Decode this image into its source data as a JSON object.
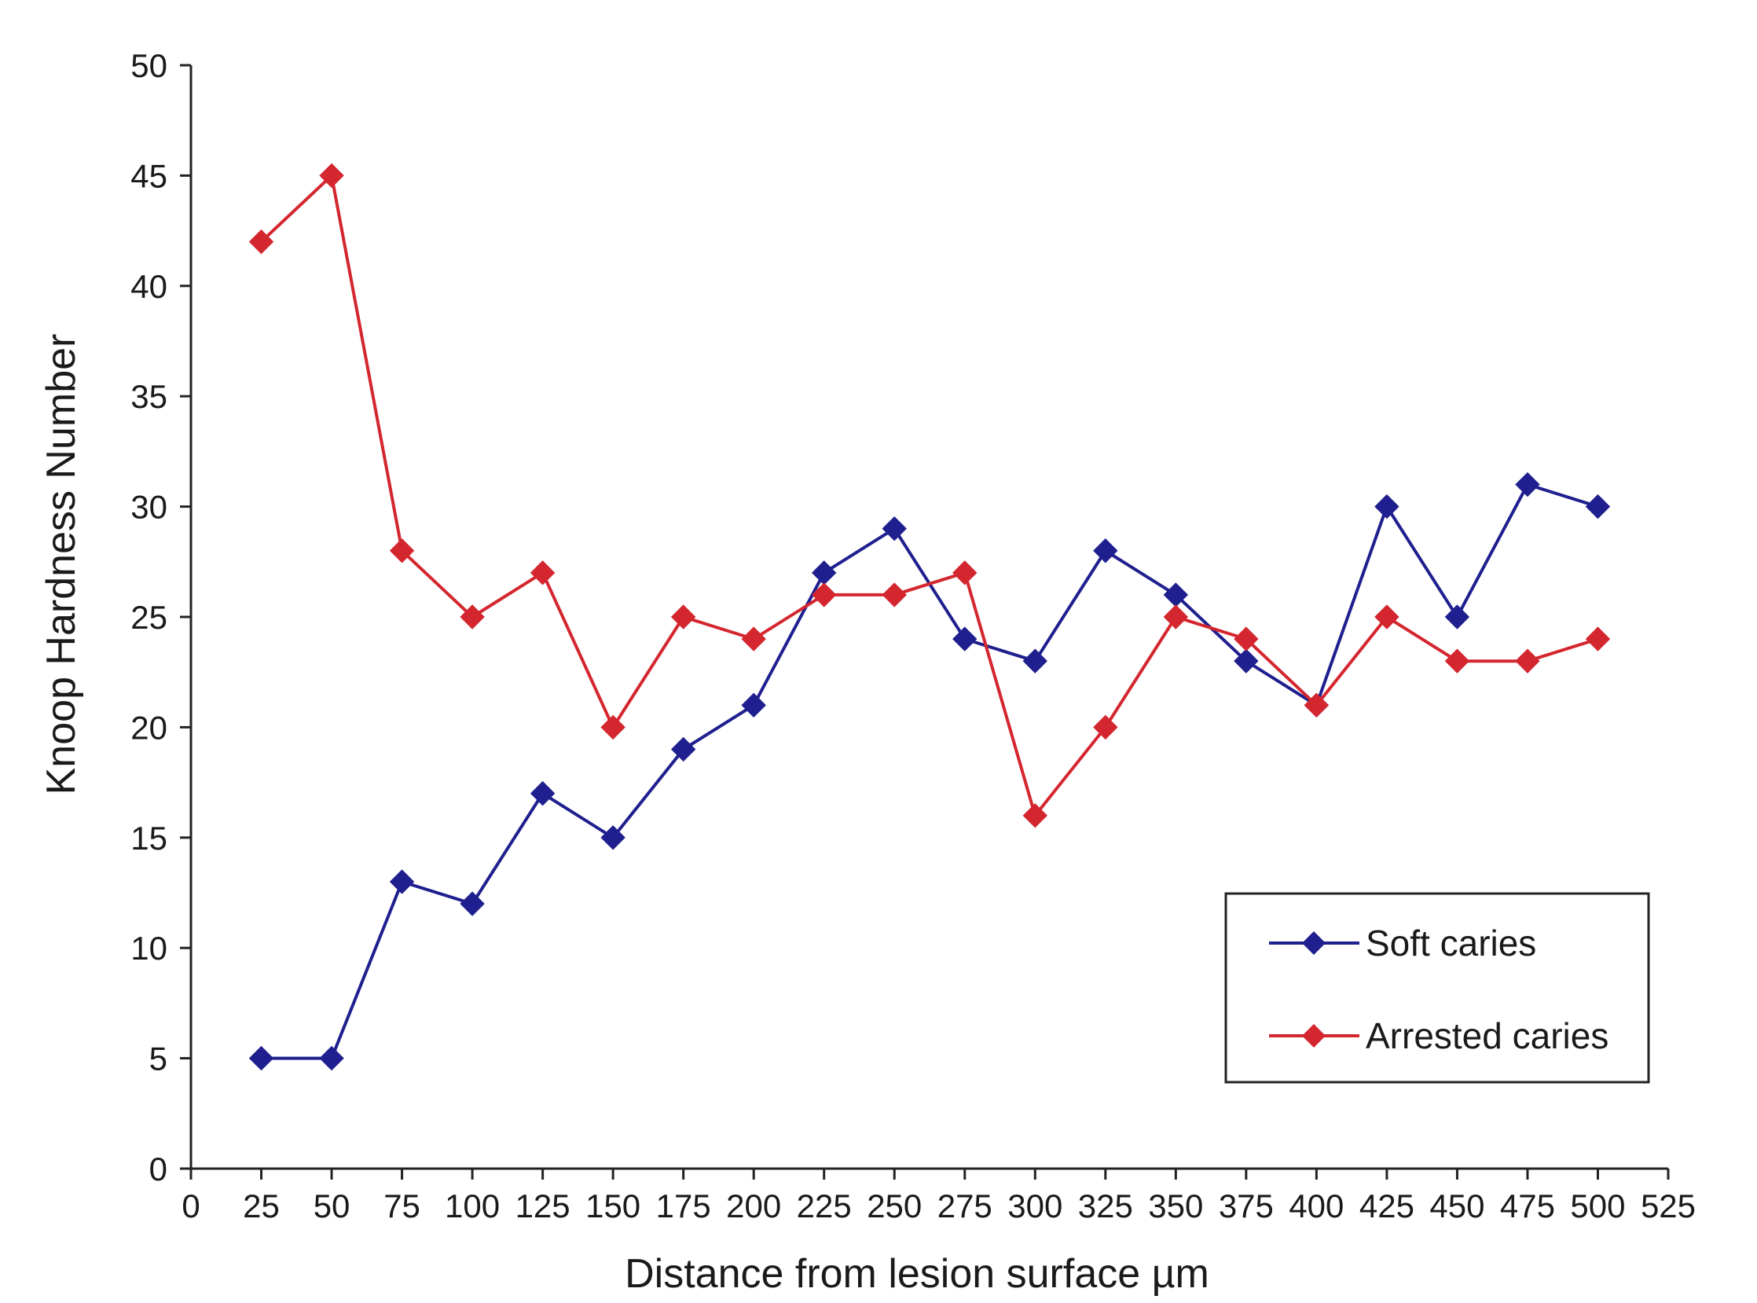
{
  "chart_data": {
    "type": "line",
    "title": "",
    "xlabel": "Distance from lesion surface µm",
    "ylabel": "Knoop Hardness Number",
    "xlim": [
      0,
      525
    ],
    "ylim": [
      0,
      50
    ],
    "x_ticks": [
      0,
      25,
      50,
      75,
      100,
      125,
      150,
      175,
      200,
      225,
      250,
      275,
      300,
      325,
      350,
      375,
      400,
      425,
      450,
      475,
      500,
      525
    ],
    "y_ticks": [
      0,
      5,
      10,
      15,
      20,
      25,
      30,
      35,
      40,
      45,
      50
    ],
    "grid": false,
    "legend_position": "bottom-right",
    "x": [
      25,
      50,
      75,
      100,
      125,
      150,
      175,
      200,
      225,
      250,
      275,
      300,
      325,
      350,
      375,
      400,
      425,
      450,
      475,
      500
    ],
    "series": [
      {
        "name": "Soft caries",
        "color": "#1f1f8f",
        "marker": "diamond",
        "values": [
          5,
          5,
          13,
          12,
          17,
          15,
          19,
          21,
          27,
          29,
          24,
          23,
          28,
          26,
          23,
          21,
          30,
          25,
          31,
          30
        ]
      },
      {
        "name": "Arrested caries",
        "color": "#d4262f",
        "marker": "diamond",
        "values": [
          42,
          45,
          28,
          25,
          27,
          20,
          25,
          24,
          26,
          26,
          27,
          16,
          20,
          25,
          24,
          21,
          25,
          23,
          23,
          24
        ]
      }
    ]
  }
}
